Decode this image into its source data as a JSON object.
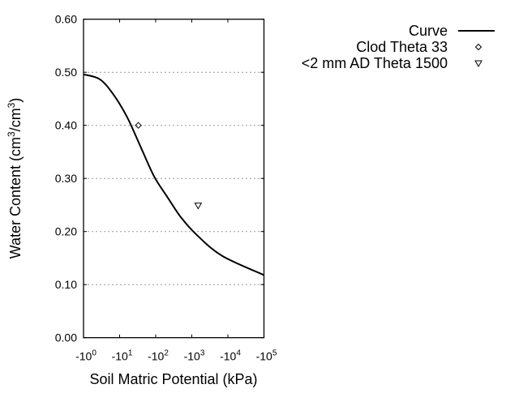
{
  "chart_data": {
    "type": "line",
    "title": "",
    "xlabel": "Soil Matric Potential (kPa)",
    "ylabel": {
      "prefix": "Water Content (cm",
      "sup1": "3",
      "mid": "/cm",
      "sup2": "3",
      "suffix": ")"
    },
    "x_scale": "log (negative potentials, magnitude shown)",
    "xlim": [
      -1,
      -100000
    ],
    "ylim": [
      0,
      0.6
    ],
    "grid": "horizontal dotted",
    "legend_placement": "top-right outside",
    "x_ticks": [
      {
        "value": 1,
        "base": "-10",
        "exp": "0"
      },
      {
        "value": 10,
        "base": "-10",
        "exp": "1"
      },
      {
        "value": 100,
        "base": "-10",
        "exp": "2"
      },
      {
        "value": 1000,
        "base": "-10",
        "exp": "3"
      },
      {
        "value": 10000,
        "base": "-10",
        "exp": "4"
      },
      {
        "value": 100000,
        "base": "-10",
        "exp": "5"
      }
    ],
    "y_ticks": [
      {
        "value": 0.0,
        "label": "0.00"
      },
      {
        "value": 0.1,
        "label": "0.10"
      },
      {
        "value": 0.2,
        "label": "0.20"
      },
      {
        "value": 0.3,
        "label": "0.30"
      },
      {
        "value": 0.4,
        "label": "0.40"
      },
      {
        "value": 0.5,
        "label": "0.50"
      },
      {
        "value": 0.6,
        "label": "0.60"
      }
    ],
    "series": [
      {
        "name": "Curve",
        "kind": "line",
        "color": "#000000",
        "points": [
          [
            -1,
            0.496
          ],
          [
            -2.8,
            0.487
          ],
          [
            -6.6,
            0.459
          ],
          [
            -16,
            0.416
          ],
          [
            -38,
            0.36
          ],
          [
            -90,
            0.304
          ],
          [
            -215,
            0.264
          ],
          [
            -510,
            0.226
          ],
          [
            -1450,
            0.192
          ],
          [
            -7000,
            0.154
          ],
          [
            -100000,
            0.118
          ]
        ]
      },
      {
        "name": "Clod Theta 33",
        "kind": "marker",
        "marker": "diamond",
        "points": [
          [
            -33,
            0.4
          ]
        ]
      },
      {
        "name": "<2 mm AD Theta 1500",
        "kind": "marker",
        "marker": "triangle-down",
        "points": [
          [
            -1500,
            0.249
          ]
        ]
      }
    ]
  }
}
